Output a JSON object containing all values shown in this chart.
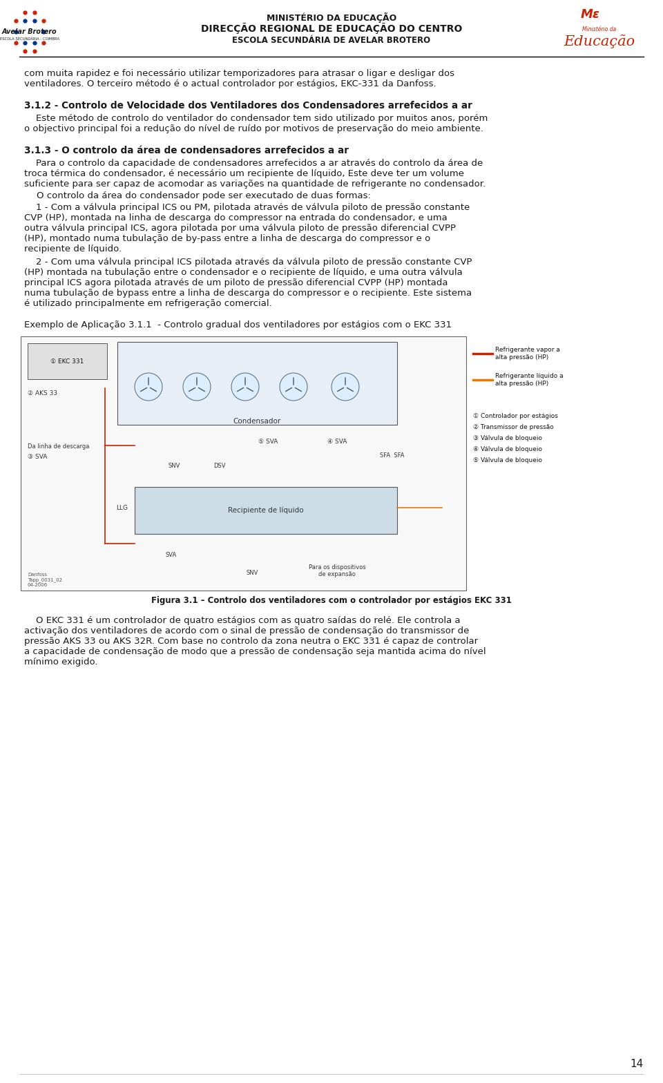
{
  "page_width": 9.6,
  "page_height": 15.68,
  "background_color": "#ffffff",
  "header_line1": "MINISTÉRIO DA EDUCAÇÃO",
  "header_line2": "DIRECÇÃO REGIONAL DE EDUCAÇÃO DO CENTRO",
  "header_line3": "ESCOLA SECUNDÁRIA DE AVELAR BROTERO",
  "body_text_color": "#1a1a1a",
  "body_font_size": 9.5,
  "title_font_size": 9.8,
  "intro_lines": [
    "com muita rapidez e foi necessário utilizar temporizadores para atrasar o ligar e desligar dos",
    "ventiladores. O terceiro método é o actual controlador por estágios, EKC-331 da Danfoss."
  ],
  "section_312_title": "3.1.2 - Controlo de Velocidade dos Ventiladores dos Condensadores arrefecidos a ar",
  "section_312_lines": [
    "    Este método de controlo do ventilador do condensador tem sido utilizado por muitos anos, porém",
    "o objectivo principal foi a redução do nível de ruído por motivos de preservação do meio ambiente."
  ],
  "section_313_title": "3.1.3 - O controlo da área de condensadores arrefecidos a ar",
  "section_313_body1_lines": [
    "    Para o controlo da capacidade de condensadores arrefecidos a ar através do controlo da área de",
    "troca térmica do condensador, é necessário um recipiente de líquido, Este deve ter um volume",
    "suficiente para ser capaz de acomodar as variações na quantidade de refrigerante no condensador."
  ],
  "section_313_body2": "O controlo da área do condensador pode ser executado de duas formas:",
  "section_313_body3_lines": [
    "    1 - Com a válvula principal ICS ou PM, pilotada através de válvula piloto de pressão constante",
    "CVP (HP), montada na linha de descarga do compressor na entrada do condensador, e uma",
    "outra válvula principal ICS, agora pilotada por uma válvula piloto de pressão diferencial CVPP",
    "(HP), montado numa tubulação de by-pass entre a linha de descarga do compressor e o",
    "recipiente de líquido."
  ],
  "section_313_body4_lines": [
    "    2 - Com uma válvula principal ICS pilotada através da válvula piloto de pressão constante CVP",
    "(HP) montada na tubulação entre o condensador e o recipiente de líquido, e uma outra válvula",
    "principal ICS agora pilotada através de um piloto de pressão diferencial CVPP (HP) montada",
    "numa tubulação de bypass entre a linha de descarga do compressor e o recipiente. Este sistema",
    "é utilizado principalmente em refrigeração comercial."
  ],
  "example_label": "Exemplo de Aplicação 3.1.1  - Controlo gradual dos ventiladores por estágios com o EKC 331",
  "figure_caption": "Figura 3.1 – Controlo dos ventiladores com o controlador por estágios EKC 331",
  "ekc_lines": [
    "    O EKC 331 é um controlador de quatro estágios com as quatro saídas do relé. Ele controla a",
    "activação dos ventiladores de acordo com o sinal de pressão de condensação do transmissor de",
    "pressão AKS 33 ou AKS 32R. Com base no controlo da zona neutra o EKC 331 é capaz de controlar",
    "a capacidade de condensação de modo que a pressão de condensação seja mantida acima do nível",
    "mínimo exigido."
  ],
  "page_number": "14",
  "red_color": "#cc2200",
  "blue_color": "#003399",
  "orange_color": "#ee7700",
  "dark_color": "#1a1a1a",
  "legend_items": [
    "Controlador por estágios",
    "Transmissor de pressão",
    "Válvula de bloqueio",
    "Válvula de bloqueio",
    "Válvula de bloqueio"
  ],
  "diagram_labels": {
    "condensador": "Condensador",
    "recipiente": "Recipiente de líquido",
    "ekc": "EKC 331",
    "aks": "AKS 33",
    "da_linha": "Da linha de descarga",
    "sva3": "SVA",
    "snv": "SNV",
    "dsv": "DSV",
    "sva5": "SVA",
    "sva4": "SVA",
    "sfa": "SFA  SFA",
    "llg": "LLG",
    "sva_bot": "SVA",
    "snv_bot": "SNV",
    "para_disp": "Para os dispositivos\nde expansão",
    "danfoss": "Danfoss\nTapp_0031_02\n04-2006",
    "ref_vapor": "Refrigerante vapor a\nalta pressão (HP)",
    "ref_liquido": "Refrigerante líquido a\nalta pressão (HP)"
  }
}
